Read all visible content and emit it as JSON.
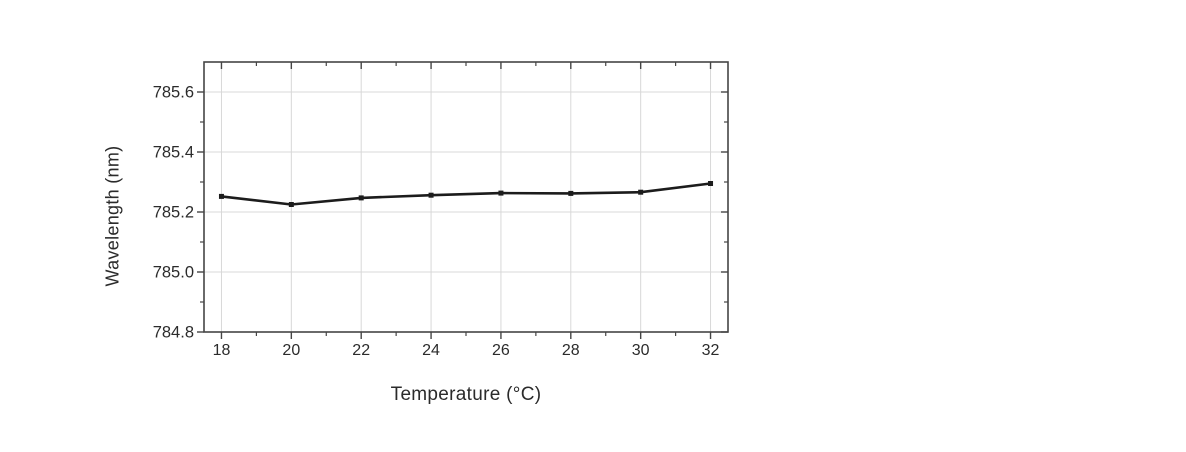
{
  "figure": {
    "background": "#ffffff"
  },
  "chart_data": {
    "type": "line",
    "title": "",
    "xlabel": "Temperature (°C)",
    "ylabel": "Wavelength (nm)",
    "x": [
      18,
      20,
      22,
      24,
      26,
      28,
      30,
      32
    ],
    "series": [
      {
        "name": "wavelength",
        "values": [
          785.252,
          785.225,
          785.247,
          785.256,
          785.263,
          785.262,
          785.266,
          785.295
        ]
      }
    ],
    "xlim": [
      17.5,
      32.5
    ],
    "ylim": [
      784.8,
      785.7
    ],
    "x_major_ticks": [
      18,
      20,
      22,
      24,
      26,
      28,
      30,
      32
    ],
    "x_minor_ticks": [
      19,
      21,
      23,
      25,
      27,
      29,
      31
    ],
    "x_tick_labels": [
      "18",
      "20",
      "22",
      "24",
      "26",
      "28",
      "30",
      "32"
    ],
    "y_major_ticks": [
      784.8,
      785.0,
      785.2,
      785.4,
      785.6
    ],
    "y_minor_ticks": [
      784.9,
      785.1,
      785.3,
      785.5
    ],
    "y_tick_labels": [
      "784.8",
      "785.0",
      "785.2",
      "785.4",
      "785.6"
    ],
    "grid": true,
    "legend": "none",
    "marker": "square",
    "colors": {
      "line": "#1c1c1c",
      "marker": "#1c1c1c",
      "grid": "#d8d8d8",
      "frame": "#454545",
      "tick": "#454545",
      "text": "#2b2b2b",
      "background": "#ffffff"
    }
  }
}
